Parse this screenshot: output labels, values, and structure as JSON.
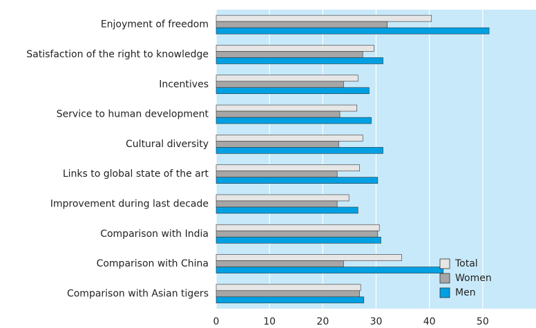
{
  "chart_data": {
    "type": "barh",
    "categories": [
      "Enjoyment of freedom",
      "Satisfaction of the right to knowledge",
      "Incentives",
      "Service to human development",
      "Cultural diversity",
      "Links to global state of the art",
      "Improvement during last decade",
      "Comparison with India",
      "Comparison with China",
      "Comparison with Asian tigers"
    ],
    "series": [
      {
        "name": "Total",
        "color": "#e6e6e6",
        "values": [
          40.4,
          29.6,
          26.6,
          26.4,
          27.5,
          26.9,
          24.9,
          30.6,
          34.8,
          27.1
        ]
      },
      {
        "name": "Women",
        "color": "#a6a6a6",
        "values": [
          32.1,
          27.5,
          23.9,
          23.2,
          23.0,
          22.7,
          22.7,
          30.3,
          23.9,
          26.9
        ]
      },
      {
        "name": "Men",
        "color": "#00a0e3",
        "values": [
          51.2,
          31.3,
          28.7,
          29.1,
          31.3,
          30.3,
          26.6,
          30.9,
          42.6,
          27.7
        ]
      }
    ],
    "xlim": [
      0,
      60
    ],
    "xticks": [
      0,
      10,
      20,
      30,
      40,
      50
    ],
    "grid": true,
    "legend": "lower right"
  }
}
